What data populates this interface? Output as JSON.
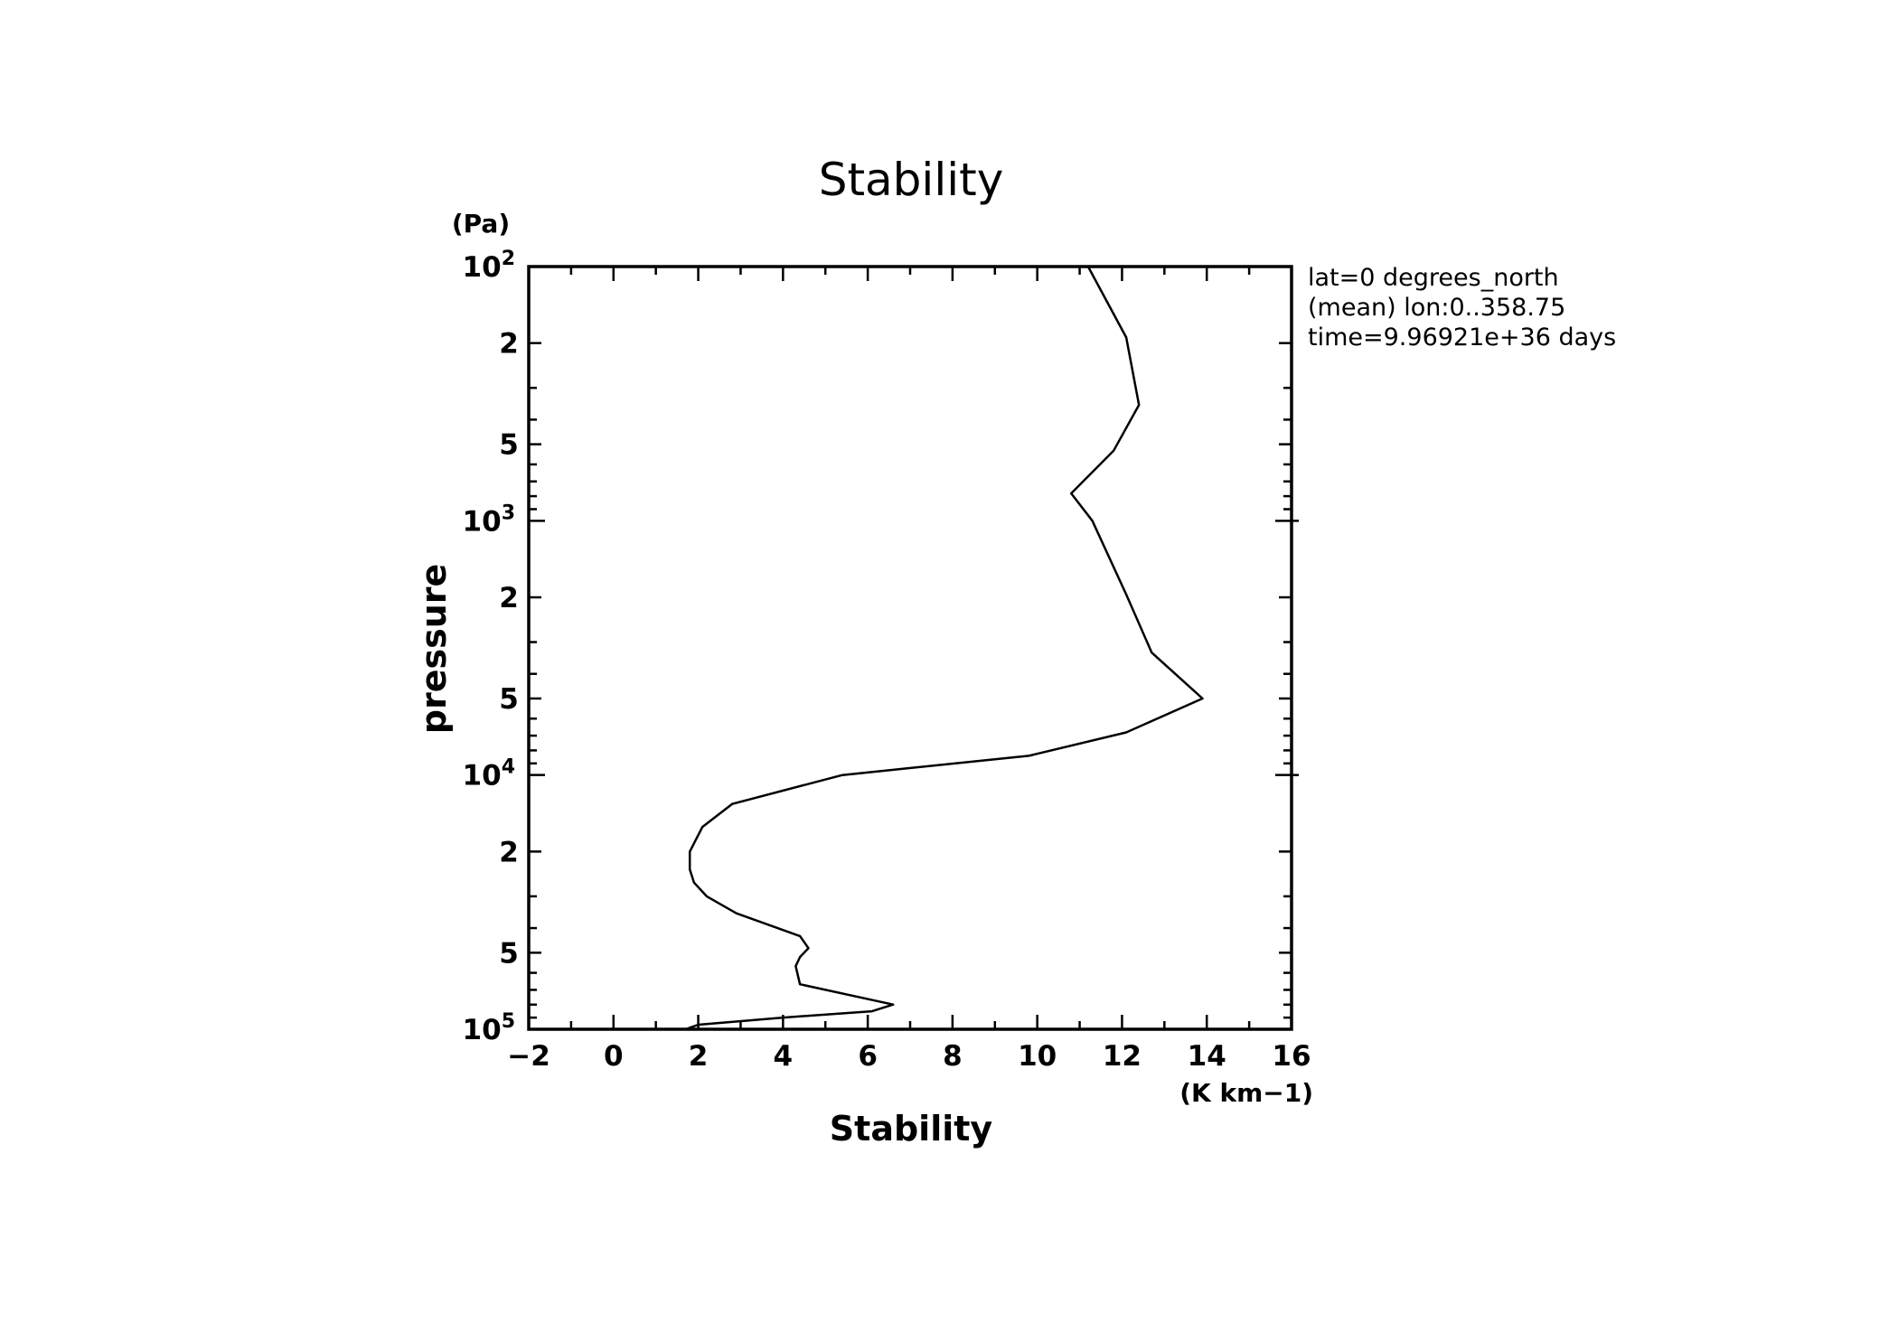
{
  "chart_data": {
    "type": "line",
    "title": "Stability",
    "xlabel": "Stability",
    "ylabel": "pressure",
    "x_units": "(K km−1)",
    "y_units": "(Pa)",
    "xlim": [
      -2,
      16
    ],
    "ylim": [
      100000,
      100
    ],
    "y_scale": "log",
    "y_inverted": true,
    "grid": false,
    "x_ticks": [
      "−2",
      "0",
      "2",
      "4",
      "6",
      "8",
      "10",
      "12",
      "14",
      "16"
    ],
    "y_ticks": [
      {
        "value": 100,
        "base": "10",
        "exp": "2"
      },
      {
        "value": 200,
        "base": "2",
        "exp": ""
      },
      {
        "value": 500,
        "base": "5",
        "exp": ""
      },
      {
        "value": 1000,
        "base": "10",
        "exp": "3"
      },
      {
        "value": 2000,
        "base": "2",
        "exp": ""
      },
      {
        "value": 5000,
        "base": "5",
        "exp": ""
      },
      {
        "value": 10000,
        "base": "10",
        "exp": "4"
      },
      {
        "value": 20000,
        "base": "2",
        "exp": ""
      },
      {
        "value": 50000,
        "base": "5",
        "exp": ""
      },
      {
        "value": 100000,
        "base": "10",
        "exp": "5"
      }
    ],
    "annotations": [
      "lat=0 degrees_north",
      "(mean) lon:0..358.75",
      "time=9.96921e+36 days"
    ],
    "series": [
      {
        "x": [
          11.2,
          12.1,
          12.4,
          11.8,
          10.8,
          11.3,
          12.1,
          12.7,
          13.9,
          12.1,
          9.8,
          5.4,
          2.8,
          2.1,
          1.8,
          1.8,
          1.9,
          2.2,
          2.9,
          4.4,
          4.6,
          4.4,
          4.3,
          4.4,
          6.6,
          6.1,
          4.0,
          2.0,
          1.7
        ],
        "y": [
          100,
          190,
          350,
          530,
          780,
          1000,
          1950,
          3300,
          5000,
          6800,
          8400,
          10000,
          13000,
          16000,
          20000,
          23500,
          26500,
          30000,
          35000,
          43000,
          48000,
          52000,
          56500,
          66500,
          80000,
          85000,
          90000,
          96000,
          100000
        ]
      }
    ]
  }
}
